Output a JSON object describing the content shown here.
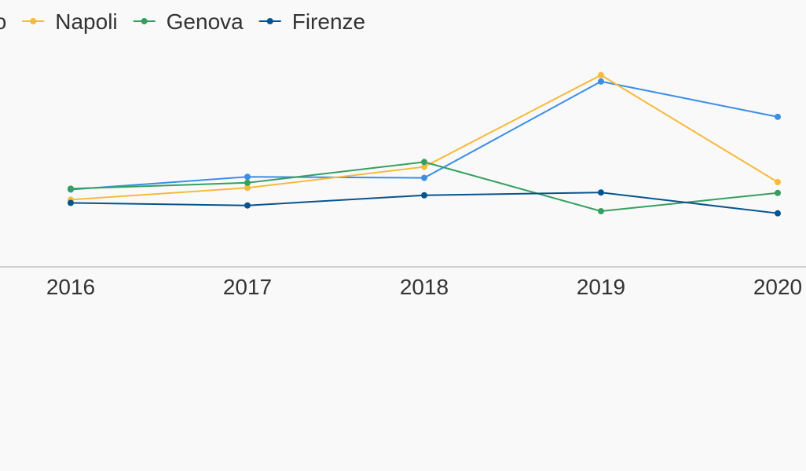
{
  "chart_data": {
    "type": "line",
    "title": "",
    "xlabel": "",
    "ylabel": "",
    "categories": [
      "2016",
      "2017",
      "2018",
      "2019",
      "2020"
    ],
    "ylim": [
      0,
      100
    ],
    "grid": false,
    "legend_position": "top",
    "axis_color": "#d0d0d0",
    "series": [
      {
        "name": "Torino",
        "color": "#3a8ee6",
        "values": [
          36.5,
          42.5,
          42.0,
          87.5,
          70.8
        ]
      },
      {
        "name": "Napoli",
        "color": "#f7b93e",
        "values": [
          31.7,
          37.3,
          47.2,
          90.5,
          40.0
        ]
      },
      {
        "name": "Genova",
        "color": "#34a05f",
        "values": [
          36.9,
          39.7,
          49.5,
          26.3,
          34.9
        ]
      },
      {
        "name": "Firenze",
        "color": "#06548f",
        "values": [
          30.2,
          29.0,
          33.8,
          35.1,
          25.3
        ]
      }
    ]
  }
}
